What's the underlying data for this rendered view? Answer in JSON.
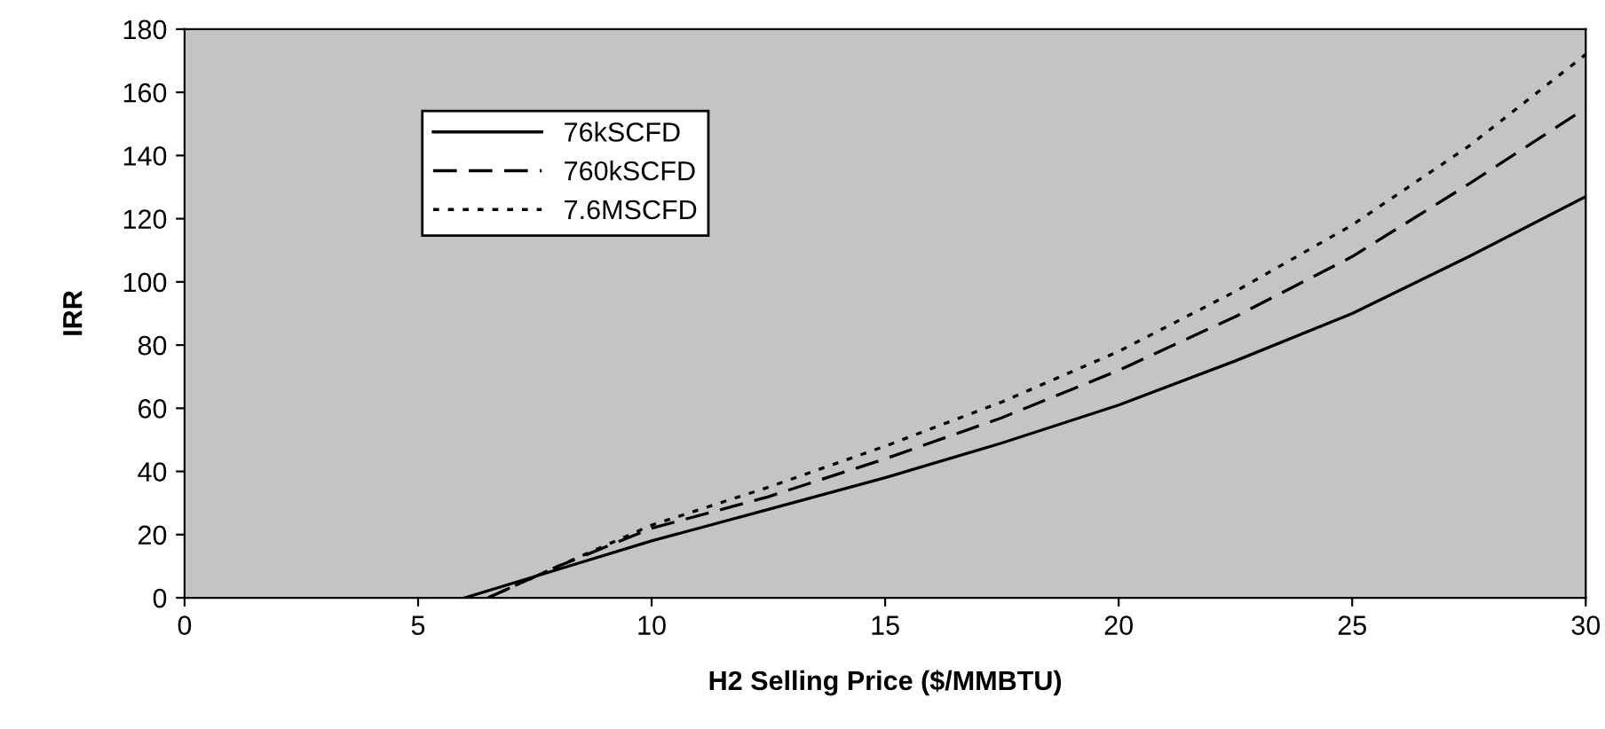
{
  "chart_data": {
    "type": "line",
    "xlabel": "H2 Selling Price ($/MMBTU)",
    "ylabel": "IRR",
    "xlim": [
      0,
      30
    ],
    "xticks": [
      0,
      5,
      10,
      15,
      20,
      25,
      30
    ],
    "ylim": [
      0,
      180
    ],
    "yticks": [
      0,
      20,
      40,
      60,
      80,
      100,
      120,
      140,
      160,
      180
    ],
    "legend": "top left",
    "grid": false,
    "series": [
      {
        "name": "76kSCFD",
        "color": "#000000",
        "line_style": "solid",
        "x": [
          6,
          8,
          10,
          12.5,
          15,
          17.5,
          20,
          22.5,
          25,
          27.5,
          30
        ],
        "values": [
          0,
          9,
          18,
          28,
          38,
          49,
          61,
          75,
          90,
          108,
          127
        ]
      },
      {
        "name": "760kSCFD",
        "color": "#000000",
        "line_style": "dashed",
        "x": [
          6.5,
          8,
          10,
          12.5,
          15,
          17.5,
          20,
          22.5,
          25,
          27.5,
          30
        ],
        "values": [
          0,
          10,
          22,
          32,
          44,
          57,
          72,
          89,
          108,
          131,
          155
        ]
      },
      {
        "name": "7.6MSCFD",
        "color": "#000000",
        "line_style": "dotted",
        "x": [
          6.5,
          8,
          10,
          12.5,
          15,
          17.5,
          20,
          22.5,
          25,
          27.5,
          30
        ],
        "values": [
          0,
          10,
          23,
          35,
          48,
          62,
          78,
          97,
          118,
          143,
          172
        ]
      }
    ]
  }
}
